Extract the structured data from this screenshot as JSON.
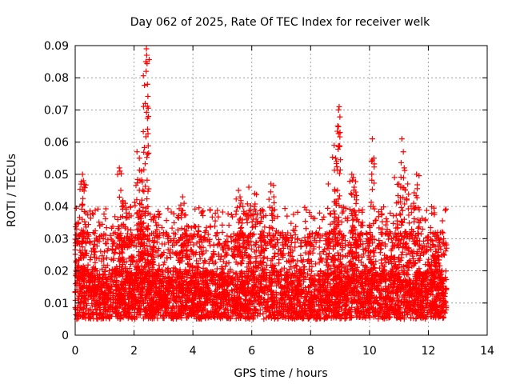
{
  "chart_data": {
    "type": "scatter",
    "title": "Day 062 of 2025, Rate Of TEC Index for receiver welk",
    "xlabel": "GPS time / hours",
    "ylabel": "ROTI / TECUs",
    "xlim": [
      0,
      14
    ],
    "ylim": [
      0,
      0.09
    ],
    "xticks": [
      0,
      2,
      4,
      6,
      8,
      10,
      12,
      14
    ],
    "xtick_labels": [
      "0",
      "2",
      "4",
      "6",
      "8",
      "10",
      "12",
      "14"
    ],
    "yticks": [
      0,
      0.01,
      0.02,
      0.03,
      0.04,
      0.05,
      0.06,
      0.07,
      0.08,
      0.09
    ],
    "ytick_labels": [
      "0",
      "0.01",
      "0.02",
      "0.03",
      "0.04",
      "0.05",
      "0.06",
      "0.07",
      "0.08",
      "0.09"
    ],
    "grid": true,
    "marker": "plus",
    "color": "#ff0000",
    "series": [
      {
        "name": "ROTI",
        "x_range": [
          0,
          12.62
        ],
        "base_band": [
          0.005,
          0.02
        ],
        "points": [
          [
            2.42,
            0.089
          ],
          [
            2.43,
            0.087
          ],
          [
            2.4,
            0.085
          ],
          [
            2.41,
            0.082
          ],
          [
            2.38,
            0.072
          ],
          [
            0.25,
            0.05
          ],
          [
            0.28,
            0.048
          ],
          [
            0.3,
            0.046
          ],
          [
            0.1,
            0.035
          ],
          [
            0.05,
            0.033
          ],
          [
            1.5,
            0.052
          ],
          [
            1.52,
            0.051
          ],
          [
            1.55,
            0.045
          ],
          [
            1.7,
            0.041
          ],
          [
            2.1,
            0.057
          ],
          [
            2.18,
            0.055
          ],
          [
            2.25,
            0.051
          ],
          [
            2.2,
            0.048
          ],
          [
            2.3,
            0.045
          ],
          [
            2.7,
            0.037
          ],
          [
            3.65,
            0.043
          ],
          [
            3.7,
            0.041
          ],
          [
            3.8,
            0.034
          ],
          [
            5.55,
            0.045
          ],
          [
            5.6,
            0.043
          ],
          [
            5.7,
            0.04
          ],
          [
            5.9,
            0.046
          ],
          [
            6.1,
            0.044
          ],
          [
            6.35,
            0.039
          ],
          [
            6.65,
            0.047
          ],
          [
            6.75,
            0.043
          ],
          [
            8.6,
            0.047
          ],
          [
            8.8,
            0.059
          ],
          [
            8.85,
            0.055
          ],
          [
            8.88,
            0.054
          ],
          [
            8.92,
            0.065
          ],
          [
            8.95,
            0.07
          ],
          [
            8.97,
            0.071
          ],
          [
            9.0,
            0.063
          ],
          [
            9.4,
            0.05
          ],
          [
            9.45,
            0.049
          ],
          [
            9.48,
            0.046
          ],
          [
            9.5,
            0.043
          ],
          [
            10.1,
            0.061
          ],
          [
            10.15,
            0.055
          ],
          [
            10.05,
            0.04
          ],
          [
            10.85,
            0.049
          ],
          [
            11.0,
            0.047
          ],
          [
            11.1,
            0.061
          ],
          [
            11.15,
            0.057
          ],
          [
            11.18,
            0.052
          ],
          [
            11.3,
            0.047
          ],
          [
            11.6,
            0.05
          ],
          [
            11.5,
            0.041
          ],
          [
            12.25,
            0.026
          ]
        ]
      }
    ]
  }
}
